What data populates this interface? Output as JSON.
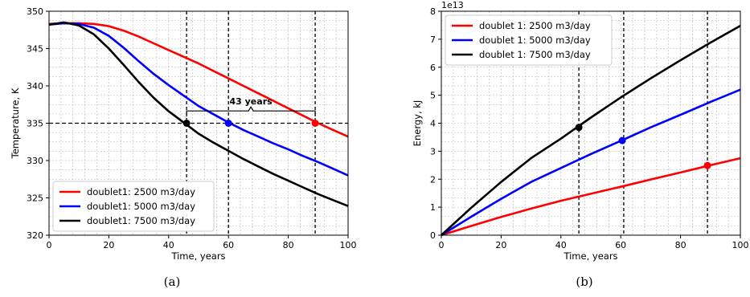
{
  "captions": {
    "a": "(a)",
    "b": "(b)"
  },
  "chart_data": [
    {
      "type": "line",
      "title": "",
      "xlabel": "Time, years",
      "ylabel": "Temperature, K",
      "xlim": [
        0,
        100
      ],
      "ylim": [
        320,
        350
      ],
      "xticks": [
        0,
        20,
        40,
        60,
        80,
        100
      ],
      "yticks": [
        320,
        325,
        330,
        335,
        340,
        345,
        350
      ],
      "grid": "minor dashed",
      "legend": "lower-left",
      "series": [
        {
          "name": "doublet1: 2500 m3/day",
          "color": "#ff0000",
          "x": [
            0,
            5,
            10,
            15,
            20,
            25,
            30,
            35,
            40,
            45,
            50,
            55,
            60,
            65,
            70,
            75,
            80,
            85,
            90,
            95,
            100
          ],
          "y": [
            348.3,
            348.4,
            348.4,
            348.3,
            348.0,
            347.4,
            346.6,
            345.7,
            344.8,
            343.9,
            343.0,
            342.0,
            341.0,
            340.0,
            339.0,
            338.0,
            337.0,
            336.0,
            335.0,
            334.1,
            333.2
          ]
        },
        {
          "name": "doublet1: 5000 m3/day",
          "color": "#0000ff",
          "x": [
            0,
            5,
            10,
            15,
            20,
            25,
            30,
            35,
            40,
            45,
            50,
            55,
            60,
            65,
            70,
            75,
            80,
            85,
            90,
            95,
            100
          ],
          "y": [
            348.2,
            348.4,
            348.3,
            347.8,
            346.7,
            345.1,
            343.3,
            341.6,
            340.1,
            338.7,
            337.3,
            336.2,
            335.1,
            334.1,
            333.2,
            332.3,
            331.5,
            330.6,
            329.8,
            328.9,
            328.0
          ]
        },
        {
          "name": "doublet1: 7500 m3/day",
          "color": "#000000",
          "x": [
            0,
            5,
            10,
            15,
            20,
            25,
            30,
            35,
            40,
            45,
            50,
            55,
            60,
            65,
            70,
            75,
            80,
            85,
            90,
            95,
            100
          ],
          "y": [
            348.2,
            348.5,
            348.1,
            346.9,
            345.0,
            342.8,
            340.5,
            338.4,
            336.6,
            335.1,
            333.6,
            332.4,
            331.3,
            330.2,
            329.2,
            328.2,
            327.3,
            326.4,
            325.5,
            324.7,
            323.9
          ]
        }
      ],
      "vlines": [
        46,
        60,
        89
      ],
      "hline": 335,
      "markers": [
        {
          "x": 46,
          "y": 335,
          "color": "#000000"
        },
        {
          "x": 60,
          "y": 335,
          "color": "#0000ff"
        },
        {
          "x": 89,
          "y": 335,
          "color": "#ff0000"
        }
      ],
      "annotation": {
        "text": "43 years",
        "x1": 46,
        "x2": 89,
        "y": 336
      }
    },
    {
      "type": "line",
      "title": "",
      "xlabel": "Time, years",
      "ylabel": "Energy, kJ",
      "offset_text": "1e13",
      "xlim": [
        0,
        100
      ],
      "ylim": [
        0,
        8
      ],
      "xticks": [
        0,
        20,
        40,
        60,
        80,
        100
      ],
      "yticks": [
        0,
        1,
        2,
        3,
        4,
        5,
        6,
        7,
        8
      ],
      "grid": "minor dashed",
      "legend": "top-left",
      "series": [
        {
          "name": "doublet 1: 2500 m3/day",
          "color": "#ff0000",
          "x": [
            0,
            10,
            20,
            30,
            40,
            50,
            60,
            70,
            80,
            90,
            100
          ],
          "y": [
            0,
            0.33,
            0.65,
            0.95,
            1.23,
            1.48,
            1.73,
            1.99,
            2.24,
            2.5,
            2.75
          ]
        },
        {
          "name": "doublet 1: 5000 m3/day",
          "color": "#0000ff",
          "x": [
            0,
            10,
            20,
            30,
            40,
            50,
            60,
            70,
            80,
            90,
            100
          ],
          "y": [
            0,
            0.66,
            1.3,
            1.9,
            2.4,
            2.9,
            3.37,
            3.85,
            4.3,
            4.76,
            5.2
          ]
        },
        {
          "name": "doublet 1: 7500 m3/day",
          "color": "#000000",
          "x": [
            0,
            10,
            20,
            30,
            40,
            50,
            60,
            70,
            80,
            90,
            100
          ],
          "y": [
            0,
            0.98,
            1.9,
            2.75,
            3.45,
            4.2,
            4.92,
            5.6,
            6.25,
            6.88,
            7.48
          ]
        }
      ],
      "vlines": [
        46,
        61,
        89
      ],
      "markers": [
        {
          "x": 46,
          "y": 3.85,
          "color": "#000000"
        },
        {
          "x": 60.5,
          "y": 3.38,
          "color": "#0000ff"
        },
        {
          "x": 89,
          "y": 2.49,
          "color": "#ff0000"
        }
      ]
    }
  ]
}
